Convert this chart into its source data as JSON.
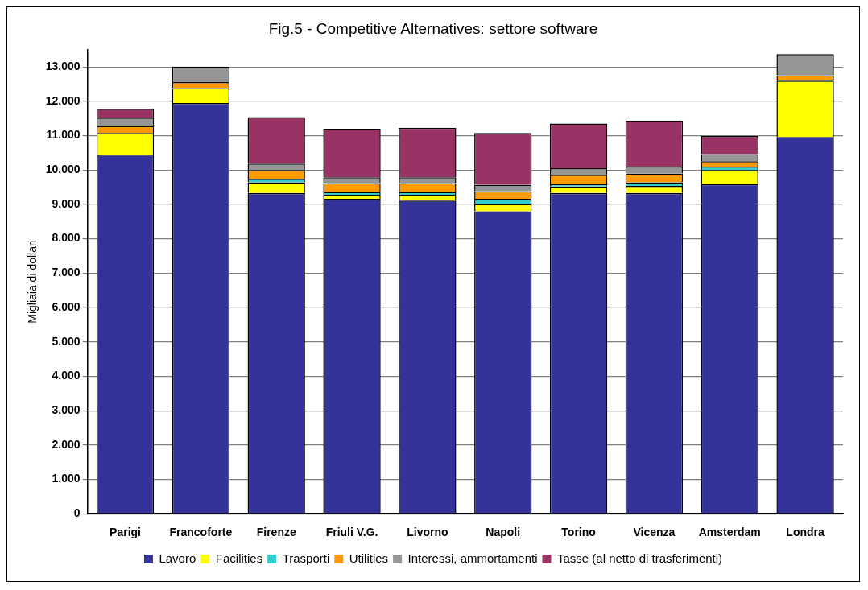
{
  "chart_data": {
    "type": "bar",
    "title": "Fig.5 - Competitive Alternatives: settore software",
    "ylabel": "Migliaia di dollari",
    "categories": [
      "Parigi",
      "Francoforte",
      "Firenze",
      "Friuli V.G.",
      "Livorno",
      "Napoli",
      "Torino",
      "Vicenza",
      "Amsterdam",
      "Londra"
    ],
    "stacked": true,
    "ylim": [
      0,
      13500
    ],
    "yticks": [
      {
        "value": 0,
        "label": "0"
      },
      {
        "value": 1000,
        "label": "1.000"
      },
      {
        "value": 2000,
        "label": "2.000"
      },
      {
        "value": 3000,
        "label": "3.000"
      },
      {
        "value": 4000,
        "label": "4.000"
      },
      {
        "value": 5000,
        "label": "5.000"
      },
      {
        "value": 6000,
        "label": "6.000"
      },
      {
        "value": 7000,
        "label": "7.000"
      },
      {
        "value": 8000,
        "label": "8.000"
      },
      {
        "value": 9000,
        "label": "9.000"
      },
      {
        "value": 10000,
        "label": "10.000"
      },
      {
        "value": 11000,
        "label": "11.000"
      },
      {
        "value": 12000,
        "label": "12.000"
      },
      {
        "value": 13000,
        "label": "13.000"
      }
    ],
    "grid": "y",
    "legend": "bottom",
    "series": [
      {
        "name": "Lavoro",
        "color": "#333399",
        "values": [
          10450,
          11950,
          9330,
          9160,
          9110,
          8800,
          9330,
          9330,
          9590,
          10960
        ]
      },
      {
        "name": "Facilities",
        "color": "#ffff00",
        "values": [
          630,
          430,
          310,
          120,
          170,
          210,
          190,
          210,
          410,
          1640
        ]
      },
      {
        "name": "Trasporti",
        "color": "#33cccc",
        "values": [
          null,
          null,
          100,
          80,
          80,
          150,
          70,
          100,
          100,
          30
        ]
      },
      {
        "name": "Utilities",
        "color": "#ff9900",
        "values": [
          200,
          180,
          260,
          260,
          260,
          220,
          270,
          260,
          160,
          130
        ]
      },
      {
        "name": "Interessi, ammortamenti",
        "color": "#969696",
        "values": [
          240,
          450,
          190,
          170,
          170,
          190,
          190,
          200,
          200,
          610
        ]
      },
      {
        "name": "Tasse (al netto di trasferimenti)",
        "color": "#993366",
        "values": [
          260,
          0,
          1350,
          1410,
          1440,
          1510,
          1300,
          1340,
          530,
          0
        ]
      }
    ]
  }
}
